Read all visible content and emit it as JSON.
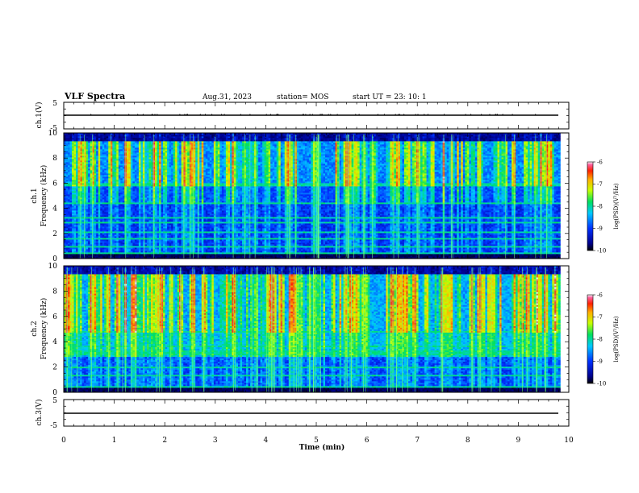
{
  "header": {
    "title": "VLF Spectra",
    "date": "Aug.31, 2023",
    "station": "station= MOS",
    "start": "start  UT  =   23: 10: 1"
  },
  "chart_data": [
    {
      "type": "line",
      "panel": "ch1-waveform",
      "ylabel": "ch.1(V)",
      "ylim": [
        -5,
        5
      ],
      "yticks": [
        "5",
        "-5"
      ],
      "x": [
        0,
        9.83
      ],
      "values": [
        0,
        0
      ]
    },
    {
      "type": "heatmap",
      "panel": "ch1-spectrogram",
      "ylabel": "ch.1\nFrequency  (kHz)",
      "ylabel_lines": [
        "ch.1",
        "Frequency  (kHz)"
      ],
      "ylim": [
        0,
        10
      ],
      "yticks": [
        "0",
        "2",
        "4",
        "6",
        "8",
        "10"
      ],
      "xlim": [
        0,
        9.83
      ],
      "colorbar": {
        "label": "log(PSD)(V²/Hz)",
        "range": [
          -10,
          -6
        ],
        "ticks": [
          "-6",
          "-7",
          "-8",
          "-9",
          "-10"
        ]
      }
    },
    {
      "type": "heatmap",
      "panel": "ch2-spectrogram",
      "ylabel_lines": [
        "ch.2",
        "Frequency  (kHz)"
      ],
      "ylim": [
        0,
        10
      ],
      "yticks": [
        "0",
        "2",
        "4",
        "6",
        "8",
        "10"
      ],
      "xlim": [
        0,
        9.83
      ],
      "colorbar": {
        "label": "log(PSD)(V²/Hz)",
        "range": [
          -10,
          -6
        ],
        "ticks": [
          "-6",
          "-7",
          "-8",
          "-9",
          "-10"
        ]
      }
    },
    {
      "type": "line",
      "panel": "ch3-waveform",
      "ylabel": "ch.3(V)",
      "ylim": [
        -5,
        5
      ],
      "yticks": [
        "5",
        "-5"
      ],
      "x": [
        0,
        9.83
      ],
      "values": [
        0,
        0
      ]
    }
  ],
  "xaxis": {
    "label": "Time  (min)",
    "range": [
      0,
      10
    ],
    "ticks": [
      "0",
      "1",
      "2",
      "3",
      "4",
      "5",
      "6",
      "7",
      "8",
      "9",
      "10"
    ]
  }
}
